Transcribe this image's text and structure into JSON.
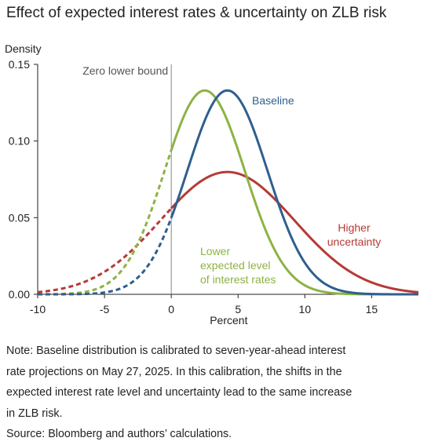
{
  "chart_data": {
    "type": "line",
    "title": "Effect of expected interest rates & uncertainty on ZLB risk",
    "xlabel": "Percent",
    "ylabel": "Density",
    "xlim": [
      -10,
      18.5
    ],
    "ylim": [
      0,
      0.15
    ],
    "x_ticks": [
      "-10",
      "-5",
      "0",
      "5",
      "10",
      "15"
    ],
    "y_ticks": [
      "0.00",
      "0.05",
      "0.10",
      "0.15"
    ],
    "grid": false,
    "legend": "direct labels on curves",
    "vline": {
      "x": 0,
      "label": "Zero lower bound",
      "color": "#888888"
    },
    "series": [
      {
        "name": "Baseline",
        "label_lines": [
          "Baseline"
        ],
        "color": "#2f5f8f",
        "mean": 4.2,
        "sd": 3.0,
        "dashed_below_x": 0
      },
      {
        "name": "Lower expected level of interest rates",
        "label_lines": [
          "Lower",
          "expected level",
          "of interest rates"
        ],
        "color": "#8db344",
        "mean": 2.5,
        "sd": 3.0,
        "dashed_below_x": 0
      },
      {
        "name": "Higher uncertainty",
        "label_lines": [
          "Higher",
          "uncertainty"
        ],
        "color": "#b53a36",
        "mean": 4.2,
        "sd": 5.0,
        "dashed_below_x": 0
      }
    ]
  },
  "note": {
    "lines": [
      "Note: Baseline distribution is calibrated to seven-year-ahead interest",
      "rate projections on May 27, 2025. In this calibration, the shifts in the",
      "expected interest rate level and uncertainty lead to the same increase",
      "in ZLB risk."
    ],
    "source": "Source: Bloomberg and authors’ calculations."
  }
}
